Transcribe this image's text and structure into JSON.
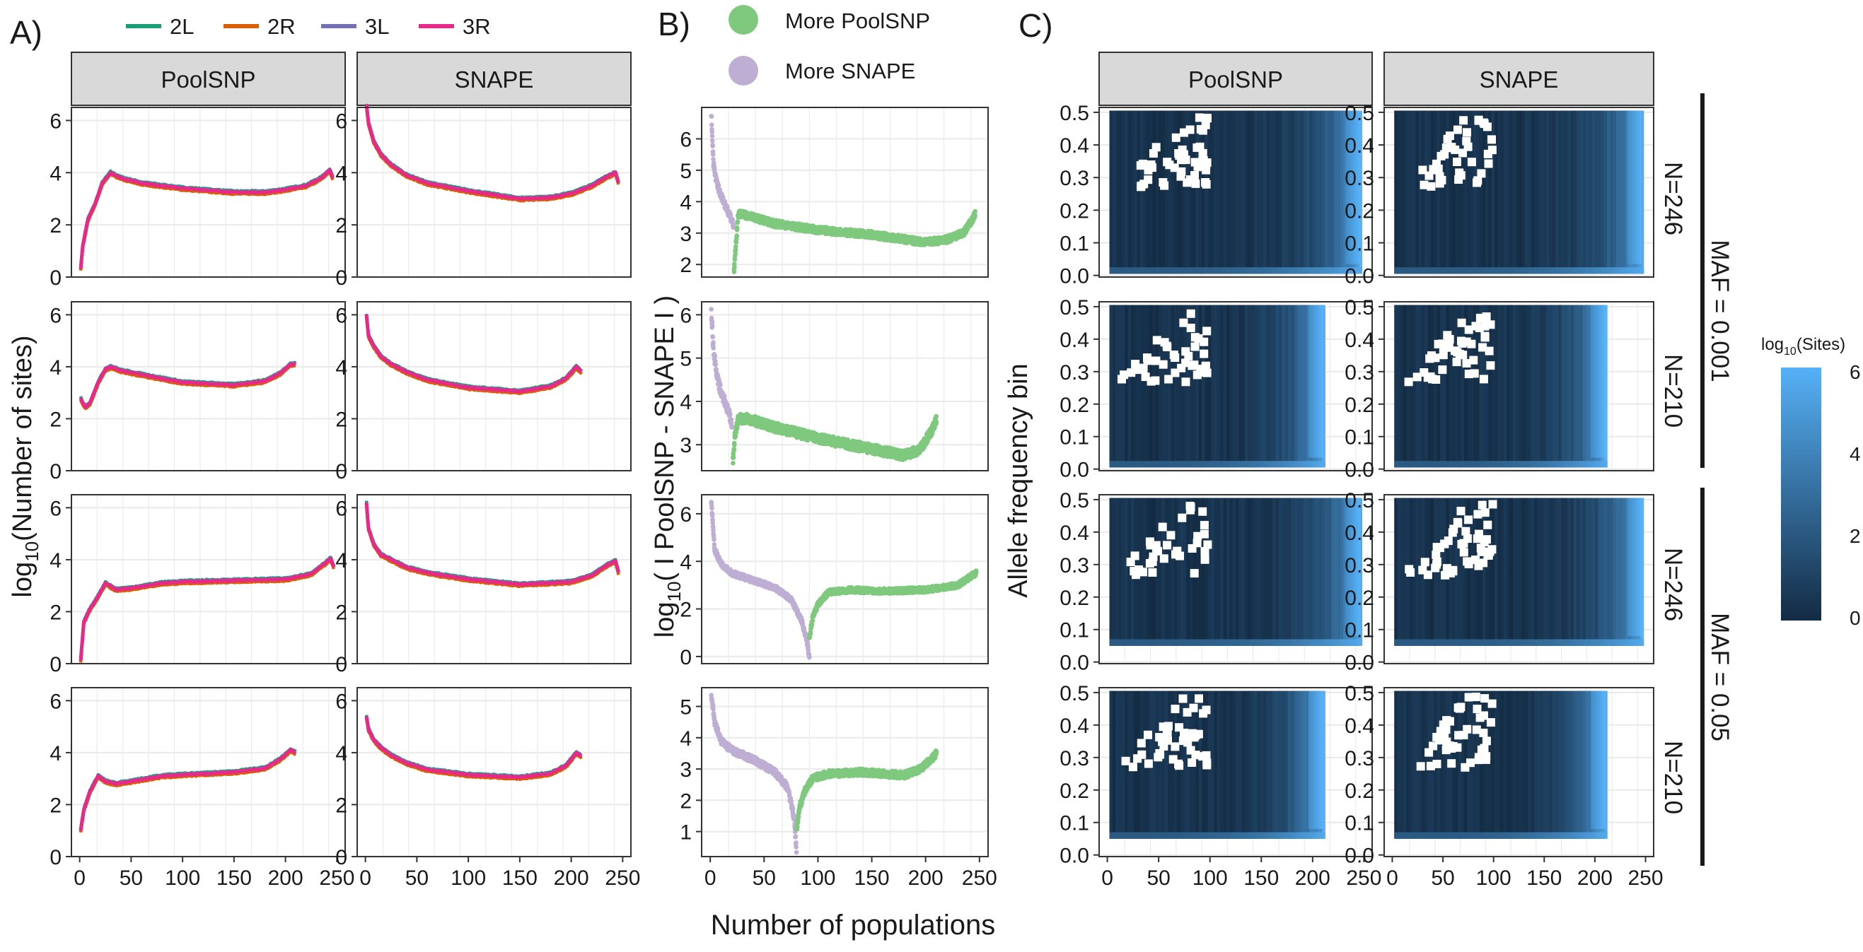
{
  "panel_labels": {
    "a": "A)",
    "b": "B)",
    "c": "C)"
  },
  "strips": {
    "poolsnp": "PoolSNP",
    "snape": "SNAPE"
  },
  "colors": {
    "2L": "#1b9e77",
    "2R": "#d95f02",
    "3L": "#7570b3",
    "3R": "#e7298a",
    "more_poolsnp": "#7fc97f",
    "more_snape": "#beaed4",
    "grid": "#ebebeb",
    "strip_bg": "#d9d9d9",
    "heat_low": "#132b43",
    "heat_high": "#56b1f7"
  },
  "legend_a": {
    "items": [
      "2L",
      "2R",
      "3L",
      "3R"
    ]
  },
  "legend_b": {
    "items": [
      "More PoolSNP",
      "More SNAPE"
    ]
  },
  "legend_c": {
    "title": "log",
    "title_sub": "10",
    "title_suffix": "(Sites)",
    "ticks": [
      "6",
      "4",
      "2",
      "0"
    ]
  },
  "axis": {
    "a_ylabel_pre": "log",
    "a_ylabel_sub": "10",
    "a_ylabel_post": "(Number of sites)",
    "b_ylabel_pre": "log",
    "b_ylabel_sub": "10",
    "b_ylabel_post": "( I PoolSNP - SNAPE I )",
    "c_ylabel": "Allele frequency bin",
    "xlabel": "Number of populations"
  },
  "facets": {
    "n246": "N=246",
    "n210": "N=210",
    "maf_001": "MAF = 0.001",
    "maf_005": "MAF = 0.05"
  },
  "chart_data": [
    {
      "type": "line",
      "title": "A",
      "xlabel": "",
      "ylabel": "log10(Number of sites)",
      "xlim": [
        0,
        250
      ],
      "ylim": [
        0,
        6.5
      ],
      "x_ticks": [
        "0",
        "50",
        "100",
        "150",
        "200",
        "250"
      ],
      "y_ticks": [
        "0",
        "2",
        "4",
        "6"
      ],
      "grid": true,
      "series_names": [
        "2L",
        "2R",
        "3L",
        "3R"
      ],
      "rows": [
        {
          "facet": "N=246, MAF = 0.001",
          "PoolSNP": {
            "x": [
              1,
              3,
              8,
              15,
              22,
              30,
              40,
              60,
              100,
              150,
              180,
              200,
              220,
              235,
              243,
              246
            ],
            "y": [
              0.3,
              1.2,
              2.2,
              2.8,
              3.6,
              4.0,
              3.8,
              3.6,
              3.4,
              3.25,
              3.25,
              3.35,
              3.5,
              3.8,
              4.1,
              3.8
            ]
          },
          "SNAPE": {
            "x": [
              1,
              3,
              8,
              15,
              25,
              40,
              60,
              100,
              150,
              180,
              200,
              220,
              235,
              243,
              246
            ],
            "y": [
              6.6,
              5.9,
              5.2,
              4.7,
              4.3,
              3.9,
              3.6,
              3.3,
              3.0,
              3.05,
              3.2,
              3.5,
              3.85,
              4.0,
              3.6
            ]
          }
        },
        {
          "facet": "N=210, MAF = 0.001",
          "PoolSNP": {
            "x": [
              1,
              3,
              6,
              10,
              18,
              25,
              30,
              40,
              60,
              100,
              150,
              180,
              195,
              205,
              210
            ],
            "y": [
              2.8,
              2.6,
              2.45,
              2.6,
              3.4,
              3.9,
              4.0,
              3.85,
              3.7,
              3.4,
              3.3,
              3.45,
              3.75,
              4.1,
              4.1
            ]
          },
          "SNAPE": {
            "x": [
              1,
              3,
              8,
              15,
              25,
              40,
              60,
              100,
              150,
              180,
              195,
              205,
              210
            ],
            "y": [
              6.0,
              5.2,
              4.8,
              4.4,
              4.1,
              3.8,
              3.5,
              3.2,
              3.05,
              3.25,
              3.55,
              4.0,
              3.8
            ]
          }
        },
        {
          "facet": "N=246, MAF = 0.05",
          "PoolSNP": {
            "x": [
              1,
              4,
              10,
              18,
              25,
              35,
              50,
              80,
              100,
              150,
              200,
              225,
              238,
              244,
              247
            ],
            "y": [
              0.1,
              1.6,
              2.1,
              2.6,
              3.1,
              2.85,
              2.9,
              3.1,
              3.15,
              3.2,
              3.25,
              3.45,
              3.85,
              4.05,
              3.7
            ]
          },
          "SNAPE": {
            "x": [
              1,
              3,
              8,
              15,
              25,
              40,
              60,
              100,
              150,
              200,
              220,
              235,
              243,
              246
            ],
            "y": [
              6.2,
              5.2,
              4.6,
              4.2,
              4.0,
              3.7,
              3.5,
              3.25,
              3.05,
              3.15,
              3.4,
              3.8,
              3.95,
              3.5
            ]
          }
        },
        {
          "facet": "N=210, MAF = 0.05",
          "PoolSNP": {
            "x": [
              1,
              4,
              10,
              18,
              25,
              35,
              50,
              80,
              100,
              150,
              180,
              195,
              205,
              210
            ],
            "y": [
              1.0,
              1.8,
              2.5,
              3.1,
              2.9,
              2.8,
              2.9,
              3.1,
              3.15,
              3.25,
              3.4,
              3.75,
              4.1,
              4.0
            ]
          },
          "SNAPE": {
            "x": [
              1,
              3,
              8,
              15,
              25,
              40,
              60,
              100,
              150,
              180,
              195,
              205,
              210
            ],
            "y": [
              5.4,
              4.9,
              4.5,
              4.2,
              3.9,
              3.6,
              3.35,
              3.15,
              3.05,
              3.2,
              3.5,
              4.0,
              3.85
            ]
          }
        }
      ]
    },
    {
      "type": "scatter",
      "title": "B",
      "xlabel": "Number of populations",
      "ylabel": "log10( I PoolSNP - SNAPE I )",
      "xlim": [
        0,
        250
      ],
      "x_ticks": [
        "0",
        "50",
        "100",
        "150",
        "200",
        "250"
      ],
      "series_names": [
        "More PoolSNP",
        "More SNAPE"
      ],
      "rows": [
        {
          "facet": "N=246, MAF = 0.001",
          "ylim": [
            1.6,
            7.0
          ],
          "y_ticks": [
            "2",
            "3",
            "4",
            "5",
            "6"
          ],
          "More SNAPE": {
            "x": [
              1,
              3,
              6,
              10,
              15,
              20,
              22
            ],
            "y": [
              6.8,
              5.2,
              4.6,
              4.2,
              3.8,
              3.4,
              3.2
            ]
          },
          "More PoolSNP": {
            "x": [
              22,
              24,
              26,
              30,
              40,
              60,
              100,
              150,
              180,
              200,
              220,
              235,
              243,
              246
            ],
            "y": [
              1.8,
              2.7,
              3.6,
              3.6,
              3.5,
              3.3,
              3.1,
              2.95,
              2.8,
              2.7,
              2.8,
              3.0,
              3.4,
              3.6
            ]
          }
        },
        {
          "facet": "N=210, MAF = 0.001",
          "ylim": [
            2.4,
            6.3
          ],
          "y_ticks": [
            "3",
            "4",
            "5",
            "6"
          ],
          "More SNAPE": {
            "x": [
              1,
              3,
              6,
              10,
              15,
              20
            ],
            "y": [
              6.1,
              5.2,
              4.6,
              4.2,
              3.9,
              3.5
            ]
          },
          "More PoolSNP": {
            "x": [
              21,
              23,
              26,
              35,
              60,
              100,
              150,
              180,
              195,
              205,
              210
            ],
            "y": [
              2.6,
              3.2,
              3.6,
              3.6,
              3.4,
              3.15,
              2.9,
              2.75,
              2.9,
              3.3,
              3.6
            ]
          }
        },
        {
          "facet": "N=246, MAF = 0.05",
          "ylim": [
            -0.3,
            6.8
          ],
          "y_ticks": [
            "0",
            "2",
            "4",
            "6"
          ],
          "More SNAPE": {
            "x": [
              1,
              4,
              10,
              20,
              40,
              60,
              75,
              85,
              90,
              92
            ],
            "y": [
              6.5,
              4.5,
              3.9,
              3.5,
              3.2,
              2.9,
              2.4,
              1.5,
              0.6,
              0.0
            ]
          },
          "More PoolSNP": {
            "x": [
              92,
              95,
              100,
              110,
              130,
              160,
              200,
              230,
              243,
              247
            ],
            "y": [
              0.8,
              1.6,
              2.2,
              2.7,
              2.8,
              2.75,
              2.8,
              3.0,
              3.4,
              3.5
            ]
          }
        },
        {
          "facet": "N=210, MAF = 0.05",
          "ylim": [
            0.2,
            5.6
          ],
          "y_ticks": [
            "1",
            "2",
            "3",
            "4",
            "5"
          ],
          "More SNAPE": {
            "x": [
              1,
              4,
              10,
              20,
              40,
              60,
              72,
              78,
              80
            ],
            "y": [
              5.4,
              4.5,
              3.9,
              3.6,
              3.3,
              2.9,
              2.4,
              1.4,
              0.4
            ]
          },
          "More PoolSNP": {
            "x": [
              80,
              83,
              88,
              95,
              110,
              140,
              180,
              195,
              205,
              210
            ],
            "y": [
              1.0,
              1.8,
              2.3,
              2.7,
              2.85,
              2.9,
              2.8,
              3.0,
              3.3,
              3.5
            ]
          }
        }
      ]
    },
    {
      "type": "heatmap",
      "title": "C",
      "xlabel": "Number of populations",
      "ylabel": "Allele frequency bin",
      "fill_label": "log10(Sites)",
      "fill_range": [
        0,
        6.2
      ],
      "xlim": [
        0,
        250
      ],
      "ylim": [
        0,
        0.5
      ],
      "x_ticks": [
        "0",
        "50",
        "100",
        "150",
        "200",
        "250"
      ],
      "y_ticks": [
        "0.0",
        "0.1",
        "0.2",
        "0.3",
        "0.4",
        "0.5"
      ],
      "rows": [
        {
          "facet": "N=246, MAF = 0.001",
          "n": 246
        },
        {
          "facet": "N=210, MAF = 0.001",
          "n": 210
        },
        {
          "facet": "N=246, MAF = 0.05",
          "n": 246
        },
        {
          "facet": "N=210, MAF = 0.05",
          "n": 210
        }
      ]
    }
  ]
}
